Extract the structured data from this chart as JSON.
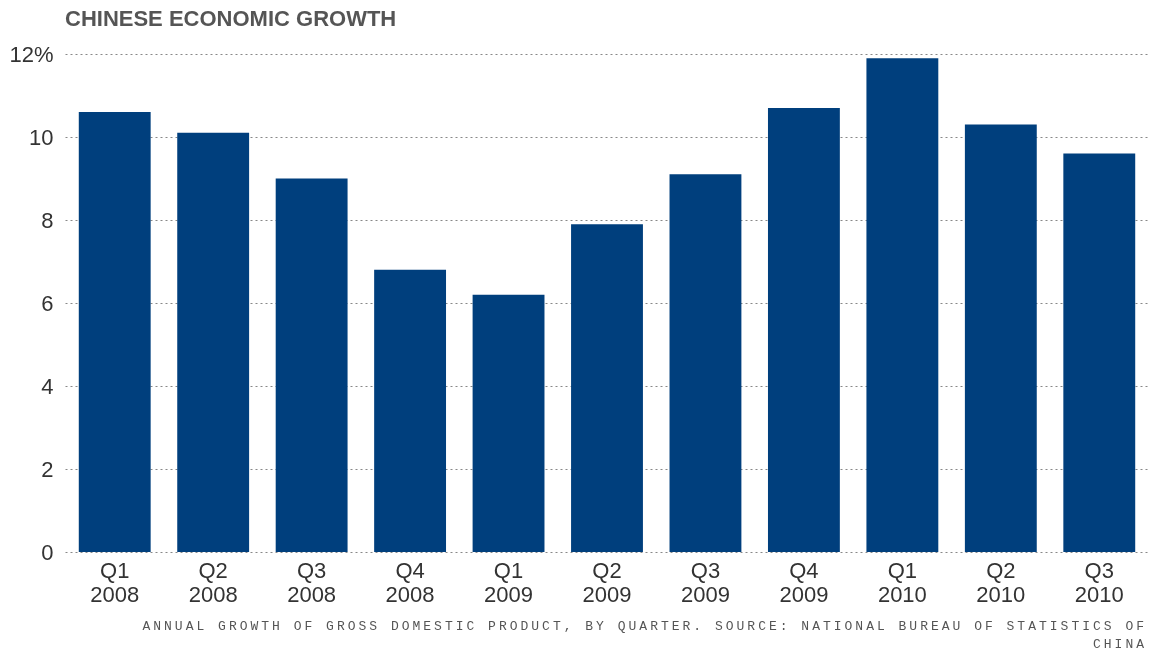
{
  "chart_data": {
    "type": "bar",
    "title": "CHINESE ECONOMIC GROWTH",
    "categories": [
      "Q1 2008",
      "Q2 2008",
      "Q3 2008",
      "Q4 2008",
      "Q1 2009",
      "Q2 2009",
      "Q3 2009",
      "Q4 2009",
      "Q1 2010",
      "Q2 2010",
      "Q3 2010"
    ],
    "values": [
      10.6,
      10.1,
      9.0,
      6.8,
      6.2,
      7.9,
      9.1,
      10.7,
      11.9,
      10.3,
      9.6
    ],
    "color": "#003f7d",
    "ylim": [
      0,
      12
    ],
    "yticks": [
      0,
      2,
      4,
      6,
      8,
      10,
      {
        "value": 12,
        "label": "12%"
      }
    ],
    "grid": "y",
    "annotations": [
      "ANNUAL GROWTH OF GROSS DOMESTIC PRODUCT, BY QUARTER. SOURCE: NATIONAL BUREAU OF STATISTICS OF CHINA"
    ]
  }
}
